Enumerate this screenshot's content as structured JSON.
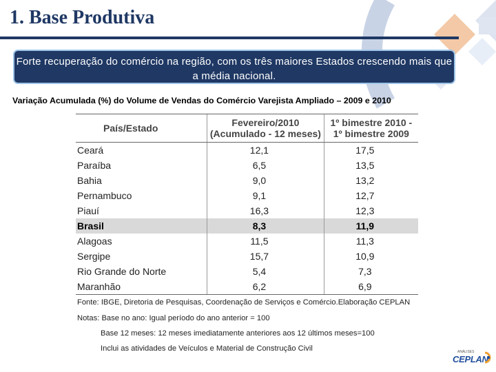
{
  "slide": {
    "title": "1. Base Produtiva",
    "highlight": "Forte recuperação do comércio na região,  com os três maiores Estados crescendo mais que  a média nacional.",
    "subtitle": "Variação Acumulada (%) do Volume de Vendas do Comércio Varejista Ampliado – 2009 e 2010"
  },
  "table": {
    "headers": {
      "state": "País/Estado",
      "feb_line1": "Fevereiro/2010",
      "feb_line2": "(Acumulado - 12 meses)",
      "bim_line1": "1º bimestre 2010 -",
      "bim_line2": "1º bimestre 2009"
    },
    "rows": [
      {
        "name": "Ceará",
        "feb": "12,1",
        "bim": "17,5"
      },
      {
        "name": "Paraíba",
        "feb": "6,5",
        "bim": "13,5"
      },
      {
        "name": "Bahia",
        "feb": "9,0",
        "bim": "13,2"
      },
      {
        "name": "Pernambuco",
        "feb": "9,1",
        "bim": "12,7"
      },
      {
        "name": "Piauí",
        "feb": "16,3",
        "bim": "12,3"
      },
      {
        "name": "Brasil",
        "feb": "8,3",
        "bim": "11,9"
      },
      {
        "name": "Alagoas",
        "feb": "11,5",
        "bim": "11,3"
      },
      {
        "name": "Sergipe",
        "feb": "15,7",
        "bim": "10,9"
      },
      {
        "name": "Rio Grande do Norte",
        "feb": "5,4",
        "bim": "7,3"
      },
      {
        "name": "Maranhão",
        "feb": "6,2",
        "bim": "6,9"
      }
    ]
  },
  "notes": {
    "source": "Fonte: IBGE, Diretoria de Pesquisas, Coordenação de Serviços e Comércio.Elaboração CEPLAN",
    "note1": "Notas: Base no ano: Igual período do ano anterior = 100",
    "note2": "Base 12 meses: 12 meses imediatamente anteriores aos 12 últimos meses=100",
    "note3": "Inclui as atividades de Veículos e Material de Construção Civil"
  },
  "logo": {
    "small": "ANÁLISES",
    "main": "CEPLAN"
  },
  "colors": {
    "navy": "#1f3864",
    "highlight_border": "#9dc3e6",
    "row_highlight": "#d9d9d9"
  }
}
